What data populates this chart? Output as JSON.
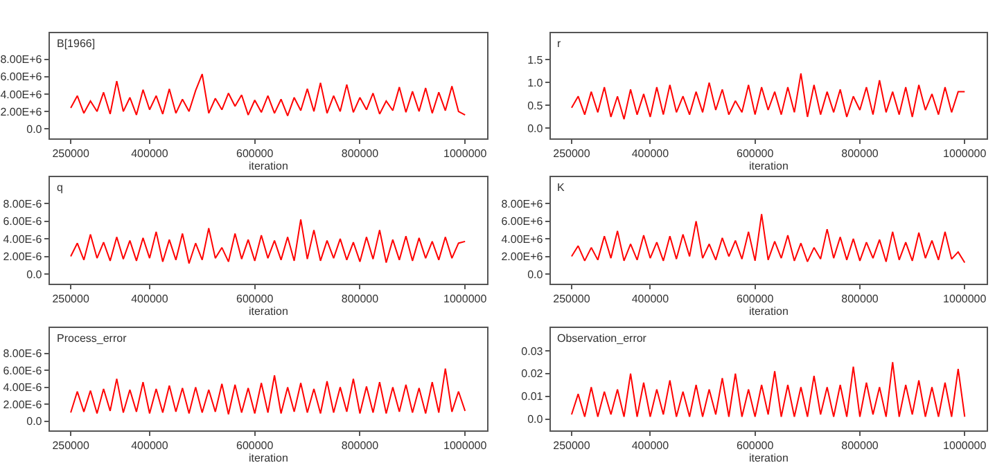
{
  "chart_data": [
    {
      "type": "line",
      "title": "B[1966]",
      "xlabel": "iteration",
      "color": "#ff0000",
      "xlim": [
        210000,
        1042000
      ],
      "xticks": [
        250000,
        400000,
        600000,
        800000,
        1000000
      ],
      "ylim": [
        -1100000.0,
        11000000.0
      ],
      "yticks": [
        {
          "value": 0,
          "label": "0.0"
        },
        {
          "value": 2000000.0,
          "label": "2.00E+6"
        },
        {
          "value": 4000000.0,
          "label": "4.00E+6"
        },
        {
          "value": 6000000.0,
          "label": "6.00E+6"
        },
        {
          "value": 8000000.0,
          "label": "8.00E+6"
        }
      ],
      "x": [
        250000,
        262500,
        275000,
        287500,
        300000,
        312500,
        325000,
        337500,
        350000,
        362500,
        375000,
        387500,
        400000,
        412500,
        425000,
        437500,
        450000,
        462500,
        475000,
        487500,
        500000,
        512500,
        525000,
        537500,
        550000,
        562500,
        575000,
        587500,
        600000,
        612500,
        625000,
        637500,
        650000,
        662500,
        675000,
        687500,
        700000,
        712500,
        725000,
        737500,
        750000,
        762500,
        775000,
        787500,
        800000,
        812500,
        825000,
        837500,
        850000,
        862500,
        875000,
        887500,
        900000,
        912500,
        925000,
        937500,
        950000,
        962500,
        975000,
        987500,
        1000000
      ],
      "values": [
        2400000.0,
        3800000.0,
        1800000.0,
        3200000.0,
        2000000.0,
        4200000.0,
        1700000.0,
        5500000.0,
        2000000.0,
        3600000.0,
        1600000.0,
        4500000.0,
        2200000.0,
        3800000.0,
        1700000.0,
        4600000.0,
        1800000.0,
        3400000.0,
        2000000.0,
        4400000.0,
        6300000.0,
        1800000.0,
        3500000.0,
        2200000.0,
        4100000.0,
        2600000.0,
        3900000.0,
        1600000.0,
        3300000.0,
        1900000.0,
        3800000.0,
        1800000.0,
        3400000.0,
        1500000.0,
        3600000.0,
        2100000.0,
        4600000.0,
        2000000.0,
        5300000.0,
        1800000.0,
        3800000.0,
        2000000.0,
        5100000.0,
        1900000.0,
        3600000.0,
        2200000.0,
        4100000.0,
        1700000.0,
        3200000.0,
        2100000.0,
        4800000.0,
        1900000.0,
        4300000.0,
        2000000.0,
        4700000.0,
        1800000.0,
        4200000.0,
        2100000.0,
        4900000.0,
        2000000.0,
        1600000.0
      ]
    },
    {
      "type": "line",
      "title": "r",
      "xlabel": "iteration",
      "color": "#ff0000",
      "xlim": [
        210000,
        1042000
      ],
      "xticks": [
        250000,
        400000,
        600000,
        800000,
        1000000
      ],
      "ylim": [
        -0.22,
        2.08
      ],
      "yticks": [
        {
          "value": 0,
          "label": "0.0"
        },
        {
          "value": 0.5,
          "label": "0.5"
        },
        {
          "value": 1,
          "label": "1.0"
        },
        {
          "value": 1.5,
          "label": "1.5"
        }
      ],
      "x": [
        250000,
        262500,
        275000,
        287500,
        300000,
        312500,
        325000,
        337500,
        350000,
        362500,
        375000,
        387500,
        400000,
        412500,
        425000,
        437500,
        450000,
        462500,
        475000,
        487500,
        500000,
        512500,
        525000,
        537500,
        550000,
        562500,
        575000,
        587500,
        600000,
        612500,
        625000,
        637500,
        650000,
        662500,
        675000,
        687500,
        700000,
        712500,
        725000,
        737500,
        750000,
        762500,
        775000,
        787500,
        800000,
        812500,
        825000,
        837500,
        850000,
        862500,
        875000,
        887500,
        900000,
        912500,
        925000,
        937500,
        950000,
        962500,
        975000,
        987500,
        1000000
      ],
      "values": [
        0.45,
        0.7,
        0.3,
        0.8,
        0.35,
        0.9,
        0.25,
        0.7,
        0.2,
        0.85,
        0.3,
        0.75,
        0.25,
        0.9,
        0.3,
        0.95,
        0.35,
        0.7,
        0.3,
        0.8,
        0.35,
        1.0,
        0.4,
        0.85,
        0.3,
        0.6,
        0.35,
        0.95,
        0.3,
        0.9,
        0.4,
        0.8,
        0.3,
        0.9,
        0.35,
        1.2,
        0.25,
        0.95,
        0.3,
        0.8,
        0.35,
        0.85,
        0.25,
        0.7,
        0.4,
        0.9,
        0.3,
        1.05,
        0.35,
        0.8,
        0.3,
        0.9,
        0.25,
        0.95,
        0.4,
        0.75,
        0.3,
        0.9,
        0.35,
        0.8,
        0.8
      ]
    },
    {
      "type": "line",
      "title": "q",
      "xlabel": "iteration",
      "color": "#ff0000",
      "xlim": [
        210000,
        1042000
      ],
      "xticks": [
        250000,
        400000,
        600000,
        800000,
        1000000
      ],
      "ylim": [
        -1.1e-06,
        1.1e-05
      ],
      "yticks": [
        {
          "value": 0,
          "label": "0.0"
        },
        {
          "value": 2e-06,
          "label": "2.00E-6"
        },
        {
          "value": 4e-06,
          "label": "4.00E-6"
        },
        {
          "value": 6e-06,
          "label": "6.00E-6"
        },
        {
          "value": 8e-06,
          "label": "8.00E-6"
        }
      ],
      "x": [
        250000,
        262500,
        275000,
        287500,
        300000,
        312500,
        325000,
        337500,
        350000,
        362500,
        375000,
        387500,
        400000,
        412500,
        425000,
        437500,
        450000,
        462500,
        475000,
        487500,
        500000,
        512500,
        525000,
        537500,
        550000,
        562500,
        575000,
        587500,
        600000,
        612500,
        625000,
        637500,
        650000,
        662500,
        675000,
        687500,
        700000,
        712500,
        725000,
        737500,
        750000,
        762500,
        775000,
        787500,
        800000,
        812500,
        825000,
        837500,
        850000,
        862500,
        875000,
        887500,
        900000,
        912500,
        925000,
        937500,
        950000,
        962500,
        975000,
        987500,
        1000000
      ],
      "values": [
        2e-06,
        3.5e-06,
        1.6e-06,
        4.5e-06,
        1.8e-06,
        3.6e-06,
        1.5e-06,
        4.2e-06,
        1.7e-06,
        3.8e-06,
        1.5e-06,
        4.1e-06,
        1.8e-06,
        4.8e-06,
        1.4e-06,
        3.9e-06,
        1.6e-06,
        4.6e-06,
        1.2e-06,
        3.5e-06,
        1.6e-06,
        5.2e-06,
        1.8e-06,
        3e-06,
        1.4e-06,
        4.6e-06,
        1.7e-06,
        3.9e-06,
        1.5e-06,
        4.4e-06,
        1.8e-06,
        3.8e-06,
        1.6e-06,
        4.2e-06,
        1.5e-06,
        6.2e-06,
        1.7e-06,
        5e-06,
        1.5e-06,
        3.8e-06,
        1.8e-06,
        4e-06,
        1.6e-06,
        3.6e-06,
        1.4e-06,
        4.2e-06,
        1.7e-06,
        5e-06,
        1.3e-06,
        3.9e-06,
        1.6e-06,
        4.3e-06,
        1.5e-06,
        4.1e-06,
        1.8e-06,
        3.7e-06,
        1.6e-06,
        4.2e-06,
        1.8e-06,
        3.5e-06,
        3.7e-06
      ]
    },
    {
      "type": "line",
      "title": "K",
      "xlabel": "iteration",
      "color": "#ff0000",
      "xlim": [
        210000,
        1042000
      ],
      "xticks": [
        250000,
        400000,
        600000,
        800000,
        1000000
      ],
      "ylim": [
        -1100000.0,
        11000000.0
      ],
      "yticks": [
        {
          "value": 0,
          "label": "0.0"
        },
        {
          "value": 2000000.0,
          "label": "2.00E+6"
        },
        {
          "value": 4000000.0,
          "label": "4.00E+6"
        },
        {
          "value": 6000000.0,
          "label": "6.00E+6"
        },
        {
          "value": 8000000.0,
          "label": "8.00E+6"
        }
      ],
      "x": [
        250000,
        262500,
        275000,
        287500,
        300000,
        312500,
        325000,
        337500,
        350000,
        362500,
        375000,
        387500,
        400000,
        412500,
        425000,
        437500,
        450000,
        462500,
        475000,
        487500,
        500000,
        512500,
        525000,
        537500,
        550000,
        562500,
        575000,
        587500,
        600000,
        612500,
        625000,
        637500,
        650000,
        662500,
        675000,
        687500,
        700000,
        712500,
        725000,
        737500,
        750000,
        762500,
        775000,
        787500,
        800000,
        812500,
        825000,
        837500,
        850000,
        862500,
        875000,
        887500,
        900000,
        912500,
        925000,
        937500,
        950000,
        962500,
        975000,
        987500,
        1000000
      ],
      "values": [
        2000000.0,
        3200000.0,
        1500000.0,
        3000000.0,
        1600000.0,
        4300000.0,
        1800000.0,
        4900000.0,
        1500000.0,
        3400000.0,
        1600000.0,
        4400000.0,
        1800000.0,
        3600000.0,
        1500000.0,
        4300000.0,
        1700000.0,
        4500000.0,
        2000000.0,
        6000000.0,
        1800000.0,
        3400000.0,
        1600000.0,
        4100000.0,
        2000000.0,
        3800000.0,
        1700000.0,
        4800000.0,
        1500000.0,
        6800000.0,
        1600000.0,
        3700000.0,
        1800000.0,
        4400000.0,
        1500000.0,
        3500000.0,
        1400000.0,
        3000000.0,
        1700000.0,
        5100000.0,
        1800000.0,
        4200000.0,
        1600000.0,
        4000000.0,
        1500000.0,
        3600000.0,
        1800000.0,
        3900000.0,
        1400000.0,
        4800000.0,
        1600000.0,
        3600000.0,
        1500000.0,
        4700000.0,
        1800000.0,
        3800000.0,
        1600000.0,
        4800000.0,
        1700000.0,
        2500000.0,
        1300000.0
      ]
    },
    {
      "type": "line",
      "title": "Process_error",
      "xlabel": "iteration",
      "color": "#ff0000",
      "xlim": [
        210000,
        1042000
      ],
      "xticks": [
        250000,
        400000,
        600000,
        800000,
        1000000
      ],
      "ylim": [
        -1.1e-06,
        1.1e-05
      ],
      "yticks": [
        {
          "value": 0,
          "label": "0.0"
        },
        {
          "value": 2e-06,
          "label": "2.00E-6"
        },
        {
          "value": 4e-06,
          "label": "4.00E-6"
        },
        {
          "value": 6e-06,
          "label": "6.00E-6"
        },
        {
          "value": 8e-06,
          "label": "8.00E-6"
        }
      ],
      "x": [
        250000,
        262500,
        275000,
        287500,
        300000,
        312500,
        325000,
        337500,
        350000,
        362500,
        375000,
        387500,
        400000,
        412500,
        425000,
        437500,
        450000,
        462500,
        475000,
        487500,
        500000,
        512500,
        525000,
        537500,
        550000,
        562500,
        575000,
        587500,
        600000,
        612500,
        625000,
        637500,
        650000,
        662500,
        675000,
        687500,
        700000,
        712500,
        725000,
        737500,
        750000,
        762500,
        775000,
        787500,
        800000,
        812500,
        825000,
        837500,
        850000,
        862500,
        875000,
        887500,
        900000,
        912500,
        925000,
        937500,
        950000,
        962500,
        975000,
        987500,
        1000000
      ],
      "values": [
        1e-06,
        3.5e-06,
        1.1e-06,
        3.6e-06,
        9e-07,
        3.8e-06,
        1.2e-06,
        5e-06,
        1e-06,
        3.7e-06,
        1.1e-06,
        4.6e-06,
        9e-07,
        3.8e-06,
        1e-06,
        4.2e-06,
        1.1e-06,
        3.9e-06,
        9e-07,
        4e-06,
        1e-06,
        3.7e-06,
        1.1e-06,
        4.4e-06,
        8e-07,
        4.3e-06,
        1e-06,
        3.9e-06,
        9e-07,
        4.5e-06,
        1e-06,
        5.4e-06,
        9e-07,
        4e-06,
        1.1e-06,
        4.5e-06,
        1e-06,
        3.8e-06,
        9e-07,
        4.7e-06,
        1e-06,
        4e-06,
        1.1e-06,
        5e-06,
        9e-07,
        4.1e-06,
        1e-06,
        4.6e-06,
        9e-07,
        4e-06,
        1.1e-06,
        4.3e-06,
        1e-06,
        3.9e-06,
        9e-07,
        4.6e-06,
        1e-06,
        6.2e-06,
        1.1e-06,
        3.5e-06,
        1.2e-06
      ]
    },
    {
      "type": "line",
      "title": "Observation_error",
      "xlabel": "iteration",
      "color": "#ff0000",
      "xlim": [
        210000,
        1042000
      ],
      "xticks": [
        250000,
        400000,
        600000,
        800000,
        1000000
      ],
      "ylim": [
        -0.005,
        0.04
      ],
      "yticks": [
        {
          "value": 0,
          "label": "0.0"
        },
        0.01,
        0.02,
        0.03
      ],
      "x": [
        250000,
        262500,
        275000,
        287500,
        300000,
        312500,
        325000,
        337500,
        350000,
        362500,
        375000,
        387500,
        400000,
        412500,
        425000,
        437500,
        450000,
        462500,
        475000,
        487500,
        500000,
        512500,
        525000,
        537500,
        550000,
        562500,
        575000,
        587500,
        600000,
        612500,
        625000,
        637500,
        650000,
        662500,
        675000,
        687500,
        700000,
        712500,
        725000,
        737500,
        750000,
        762500,
        775000,
        787500,
        800000,
        812500,
        825000,
        837500,
        850000,
        862500,
        875000,
        887500,
        900000,
        912500,
        925000,
        937500,
        950000,
        962500,
        975000,
        987500,
        1000000
      ],
      "values": [
        0.002,
        0.011,
        0.001,
        0.014,
        0.001,
        0.012,
        0.002,
        0.013,
        0.001,
        0.02,
        0.001,
        0.016,
        0.001,
        0.013,
        0.002,
        0.017,
        0.001,
        0.012,
        0.001,
        0.015,
        0.001,
        0.013,
        0.002,
        0.018,
        0.001,
        0.02,
        0.001,
        0.013,
        0.001,
        0.015,
        0.002,
        0.021,
        0.001,
        0.015,
        0.001,
        0.014,
        0.001,
        0.019,
        0.002,
        0.014,
        0.001,
        0.015,
        0.001,
        0.023,
        0.001,
        0.016,
        0.002,
        0.014,
        0.001,
        0.025,
        0.001,
        0.015,
        0.002,
        0.017,
        0.001,
        0.014,
        0.001,
        0.016,
        0.001,
        0.022,
        0.001
      ]
    }
  ]
}
